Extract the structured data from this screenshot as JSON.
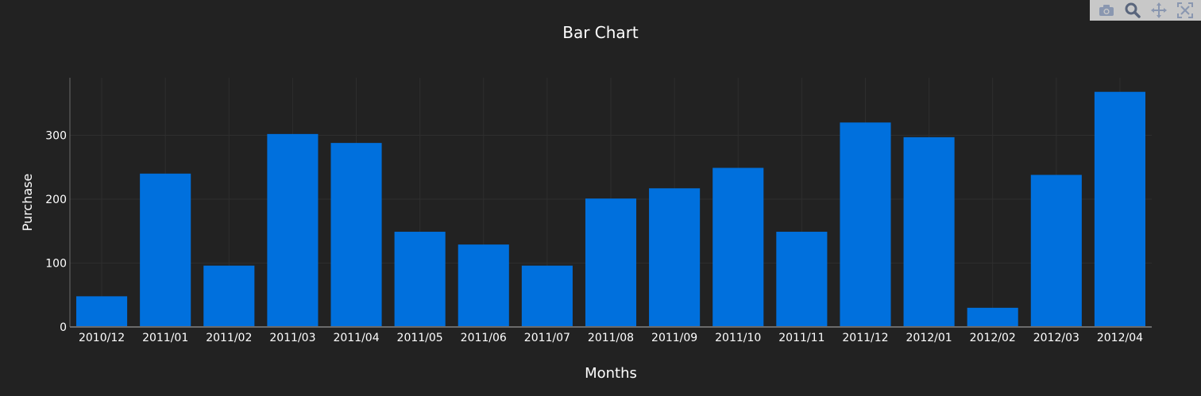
{
  "modebar": {
    "buttons": [
      {
        "name": "camera-icon"
      },
      {
        "name": "zoom-icon"
      },
      {
        "name": "pan-icon"
      },
      {
        "name": "autoscale-icon"
      }
    ]
  },
  "colors": {
    "background": "#222222",
    "bar": "#0070dd",
    "text": "#ffffff",
    "grid": "#2e2e2e",
    "axis_line": "#6b6b6b",
    "modebar_bg": "#c8c8c8",
    "modebar_icon": "#8a97b0"
  },
  "chart_data": {
    "type": "bar",
    "title": "Bar Chart",
    "xlabel": "Months",
    "ylabel": "Purchase",
    "categories": [
      "2010/12",
      "2011/01",
      "2011/02",
      "2011/03",
      "2011/04",
      "2011/05",
      "2011/06",
      "2011/07",
      "2011/08",
      "2011/09",
      "2011/10",
      "2011/11",
      "2011/12",
      "2012/01",
      "2012/02",
      "2012/03",
      "2012/04"
    ],
    "values": [
      48,
      240,
      96,
      302,
      288,
      149,
      129,
      96,
      201,
      217,
      249,
      149,
      320,
      297,
      30,
      238,
      368
    ],
    "ylim": [
      0,
      390
    ],
    "yticks": [
      0,
      100,
      200,
      300
    ],
    "grid": true,
    "legend": "none"
  }
}
